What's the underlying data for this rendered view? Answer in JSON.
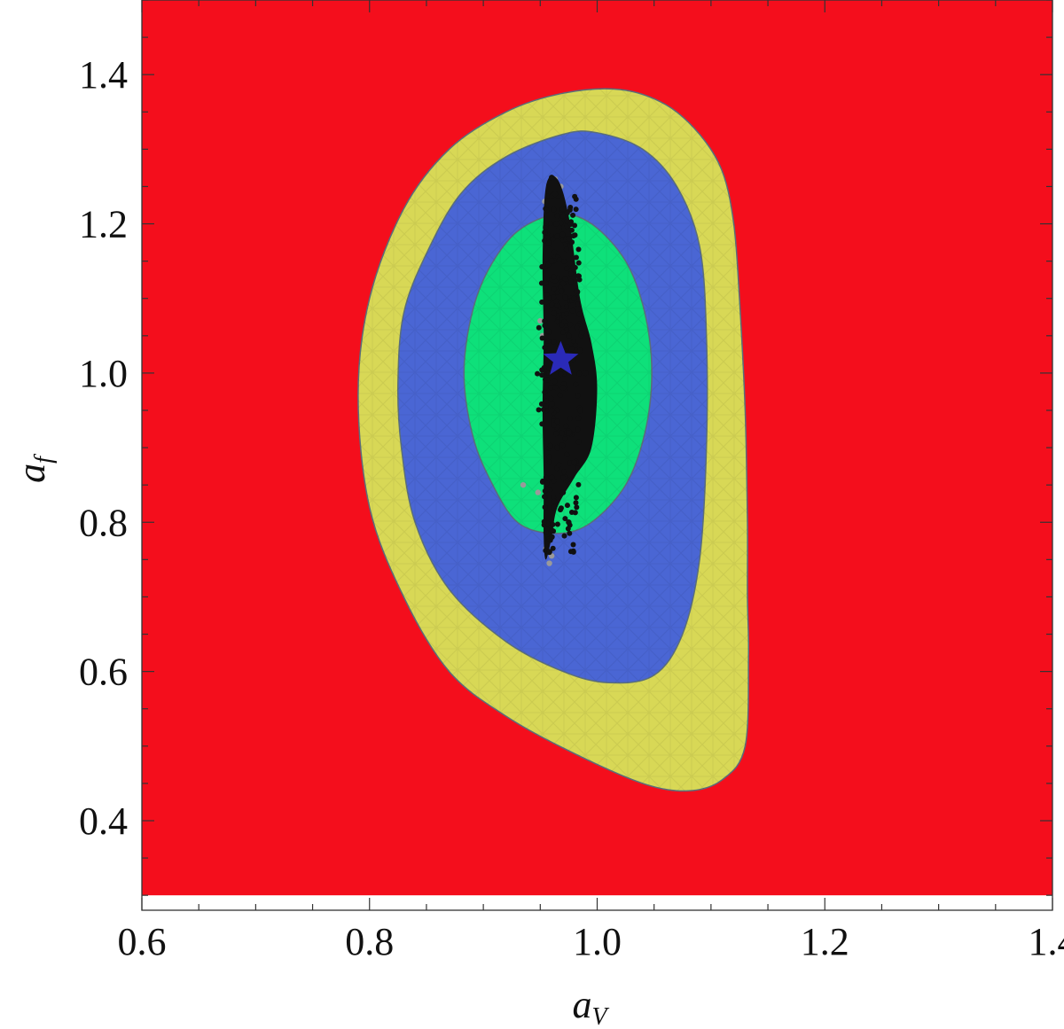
{
  "chart_data": {
    "type": "contour",
    "title": "",
    "xlabel": "a",
    "xlabel_subscript": "V",
    "ylabel": "a",
    "ylabel_subscript": "f",
    "xlim": [
      0.6,
      1.4
    ],
    "ylim": [
      0.28,
      1.5
    ],
    "fill_region": {
      "x": [
        0.6,
        1.4
      ],
      "y": [
        0.3,
        1.5
      ]
    },
    "x_ticks": [
      "0.6",
      "0.8",
      "1.0",
      "1.2",
      "1.4"
    ],
    "y_ticks": [
      "0.4",
      "0.6",
      "0.8",
      "1.0",
      "1.2",
      "1.4"
    ],
    "x_tick_values": [
      0.6,
      0.8,
      1.0,
      1.2,
      1.4
    ],
    "y_tick_values": [
      0.4,
      0.6,
      0.8,
      1.0,
      1.2,
      1.4
    ],
    "grid": false,
    "colors": {
      "background_region": "#f40e1c",
      "outer_region": "#d8d856",
      "middle_region": "#4a66d4",
      "inner_region": "#0ee07a",
      "points_black": "#111111",
      "points_gray": "#9a9a9a",
      "best_fit_star": "#2a2ab8"
    },
    "regions": [
      {
        "level": "outer",
        "color": "#d8d856",
        "boundary": [
          [
            0.79,
            0.97
          ],
          [
            0.8,
            1.1
          ],
          [
            0.83,
            1.22
          ],
          [
            0.87,
            1.3
          ],
          [
            0.92,
            1.35
          ],
          [
            0.97,
            1.375
          ],
          [
            1.02,
            1.38
          ],
          [
            1.06,
            1.36
          ],
          [
            1.09,
            1.32
          ],
          [
            1.11,
            1.27
          ],
          [
            1.12,
            1.2
          ],
          [
            1.125,
            1.1
          ],
          [
            1.13,
            0.95
          ],
          [
            1.132,
            0.8
          ],
          [
            1.132,
            0.7
          ],
          [
            1.133,
            0.62
          ],
          [
            1.13,
            0.5
          ],
          [
            1.11,
            0.455
          ],
          [
            1.08,
            0.44
          ],
          [
            1.04,
            0.45
          ],
          [
            0.98,
            0.49
          ],
          [
            0.92,
            0.54
          ],
          [
            0.87,
            0.6
          ],
          [
            0.83,
            0.7
          ],
          [
            0.8,
            0.82
          ]
        ]
      },
      {
        "level": "middle",
        "color": "#4a66d4",
        "boundary": [
          [
            0.825,
            0.985
          ],
          [
            0.83,
            1.08
          ],
          [
            0.85,
            1.16
          ],
          [
            0.88,
            1.24
          ],
          [
            0.92,
            1.29
          ],
          [
            0.97,
            1.32
          ],
          [
            1.0,
            1.322
          ],
          [
            1.04,
            1.3
          ],
          [
            1.07,
            1.25
          ],
          [
            1.09,
            1.17
          ],
          [
            1.096,
            1.05
          ],
          [
            1.096,
            0.9
          ],
          [
            1.09,
            0.75
          ],
          [
            1.075,
            0.65
          ],
          [
            1.05,
            0.595
          ],
          [
            1.01,
            0.585
          ],
          [
            0.97,
            0.6
          ],
          [
            0.92,
            0.64
          ],
          [
            0.87,
            0.71
          ],
          [
            0.84,
            0.8
          ],
          [
            0.828,
            0.9
          ]
        ]
      },
      {
        "level": "inner",
        "color": "#0ee07a",
        "boundary": [
          [
            0.883,
            1.0
          ],
          [
            0.89,
            1.08
          ],
          [
            0.905,
            1.14
          ],
          [
            0.93,
            1.19
          ],
          [
            0.965,
            1.213
          ],
          [
            0.995,
            1.2
          ],
          [
            1.025,
            1.15
          ],
          [
            1.042,
            1.08
          ],
          [
            1.048,
            1.0
          ],
          [
            1.042,
            0.92
          ],
          [
            1.025,
            0.85
          ],
          [
            0.995,
            0.8
          ],
          [
            0.965,
            0.785
          ],
          [
            0.93,
            0.8
          ],
          [
            0.905,
            0.86
          ],
          [
            0.89,
            0.92
          ]
        ]
      }
    ],
    "scatter_band": {
      "description": "dense cloud of sampled points",
      "boundary_black": [
        [
          0.955,
          1.25
        ],
        [
          0.965,
          1.26
        ],
        [
          0.975,
          1.21
        ],
        [
          0.985,
          1.1
        ],
        [
          0.995,
          1.04
        ],
        [
          1.0,
          0.98
        ],
        [
          0.995,
          0.9
        ],
        [
          0.98,
          0.86
        ],
        [
          0.965,
          0.82
        ],
        [
          0.96,
          0.78
        ],
        [
          0.955,
          0.75
        ],
        [
          0.953,
          0.78
        ],
        [
          0.953,
          0.86
        ],
        [
          0.952,
          0.95
        ],
        [
          0.953,
          1.05
        ],
        [
          0.952,
          1.15
        ]
      ],
      "sample_points": [
        [
          0.96,
          1.262
        ],
        [
          0.963,
          1.24
        ],
        [
          0.97,
          1.22
        ],
        [
          0.964,
          1.2
        ],
        [
          0.975,
          1.18
        ],
        [
          0.96,
          1.15
        ],
        [
          0.97,
          1.12
        ],
        [
          0.98,
          1.1
        ],
        [
          0.962,
          1.08
        ],
        [
          0.975,
          1.05
        ],
        [
          0.985,
          1.03
        ],
        [
          0.958,
          1.0
        ],
        [
          0.99,
          1.0
        ],
        [
          0.97,
          0.98
        ],
        [
          0.96,
          0.95
        ],
        [
          0.985,
          0.95
        ],
        [
          0.975,
          0.92
        ],
        [
          0.965,
          0.9
        ],
        [
          0.98,
          0.88
        ],
        [
          0.96,
          0.86
        ],
        [
          0.97,
          0.84
        ],
        [
          0.962,
          0.82
        ],
        [
          0.975,
          0.8
        ],
        [
          0.96,
          0.78
        ],
        [
          0.958,
          0.76
        ]
      ],
      "gray_points": [
        [
          0.954,
          1.23
        ],
        [
          0.963,
          1.26
        ],
        [
          0.968,
          1.25
        ],
        [
          0.95,
          1.07
        ],
        [
          0.952,
          1.05
        ],
        [
          0.935,
          0.85
        ],
        [
          0.948,
          0.84
        ],
        [
          0.958,
          0.745
        ],
        [
          0.96,
          0.755
        ],
        [
          0.955,
          0.765
        ]
      ]
    },
    "best_fit": {
      "x": 0.968,
      "y": 1.018,
      "marker": "star",
      "color": "#2a2ab8"
    }
  }
}
